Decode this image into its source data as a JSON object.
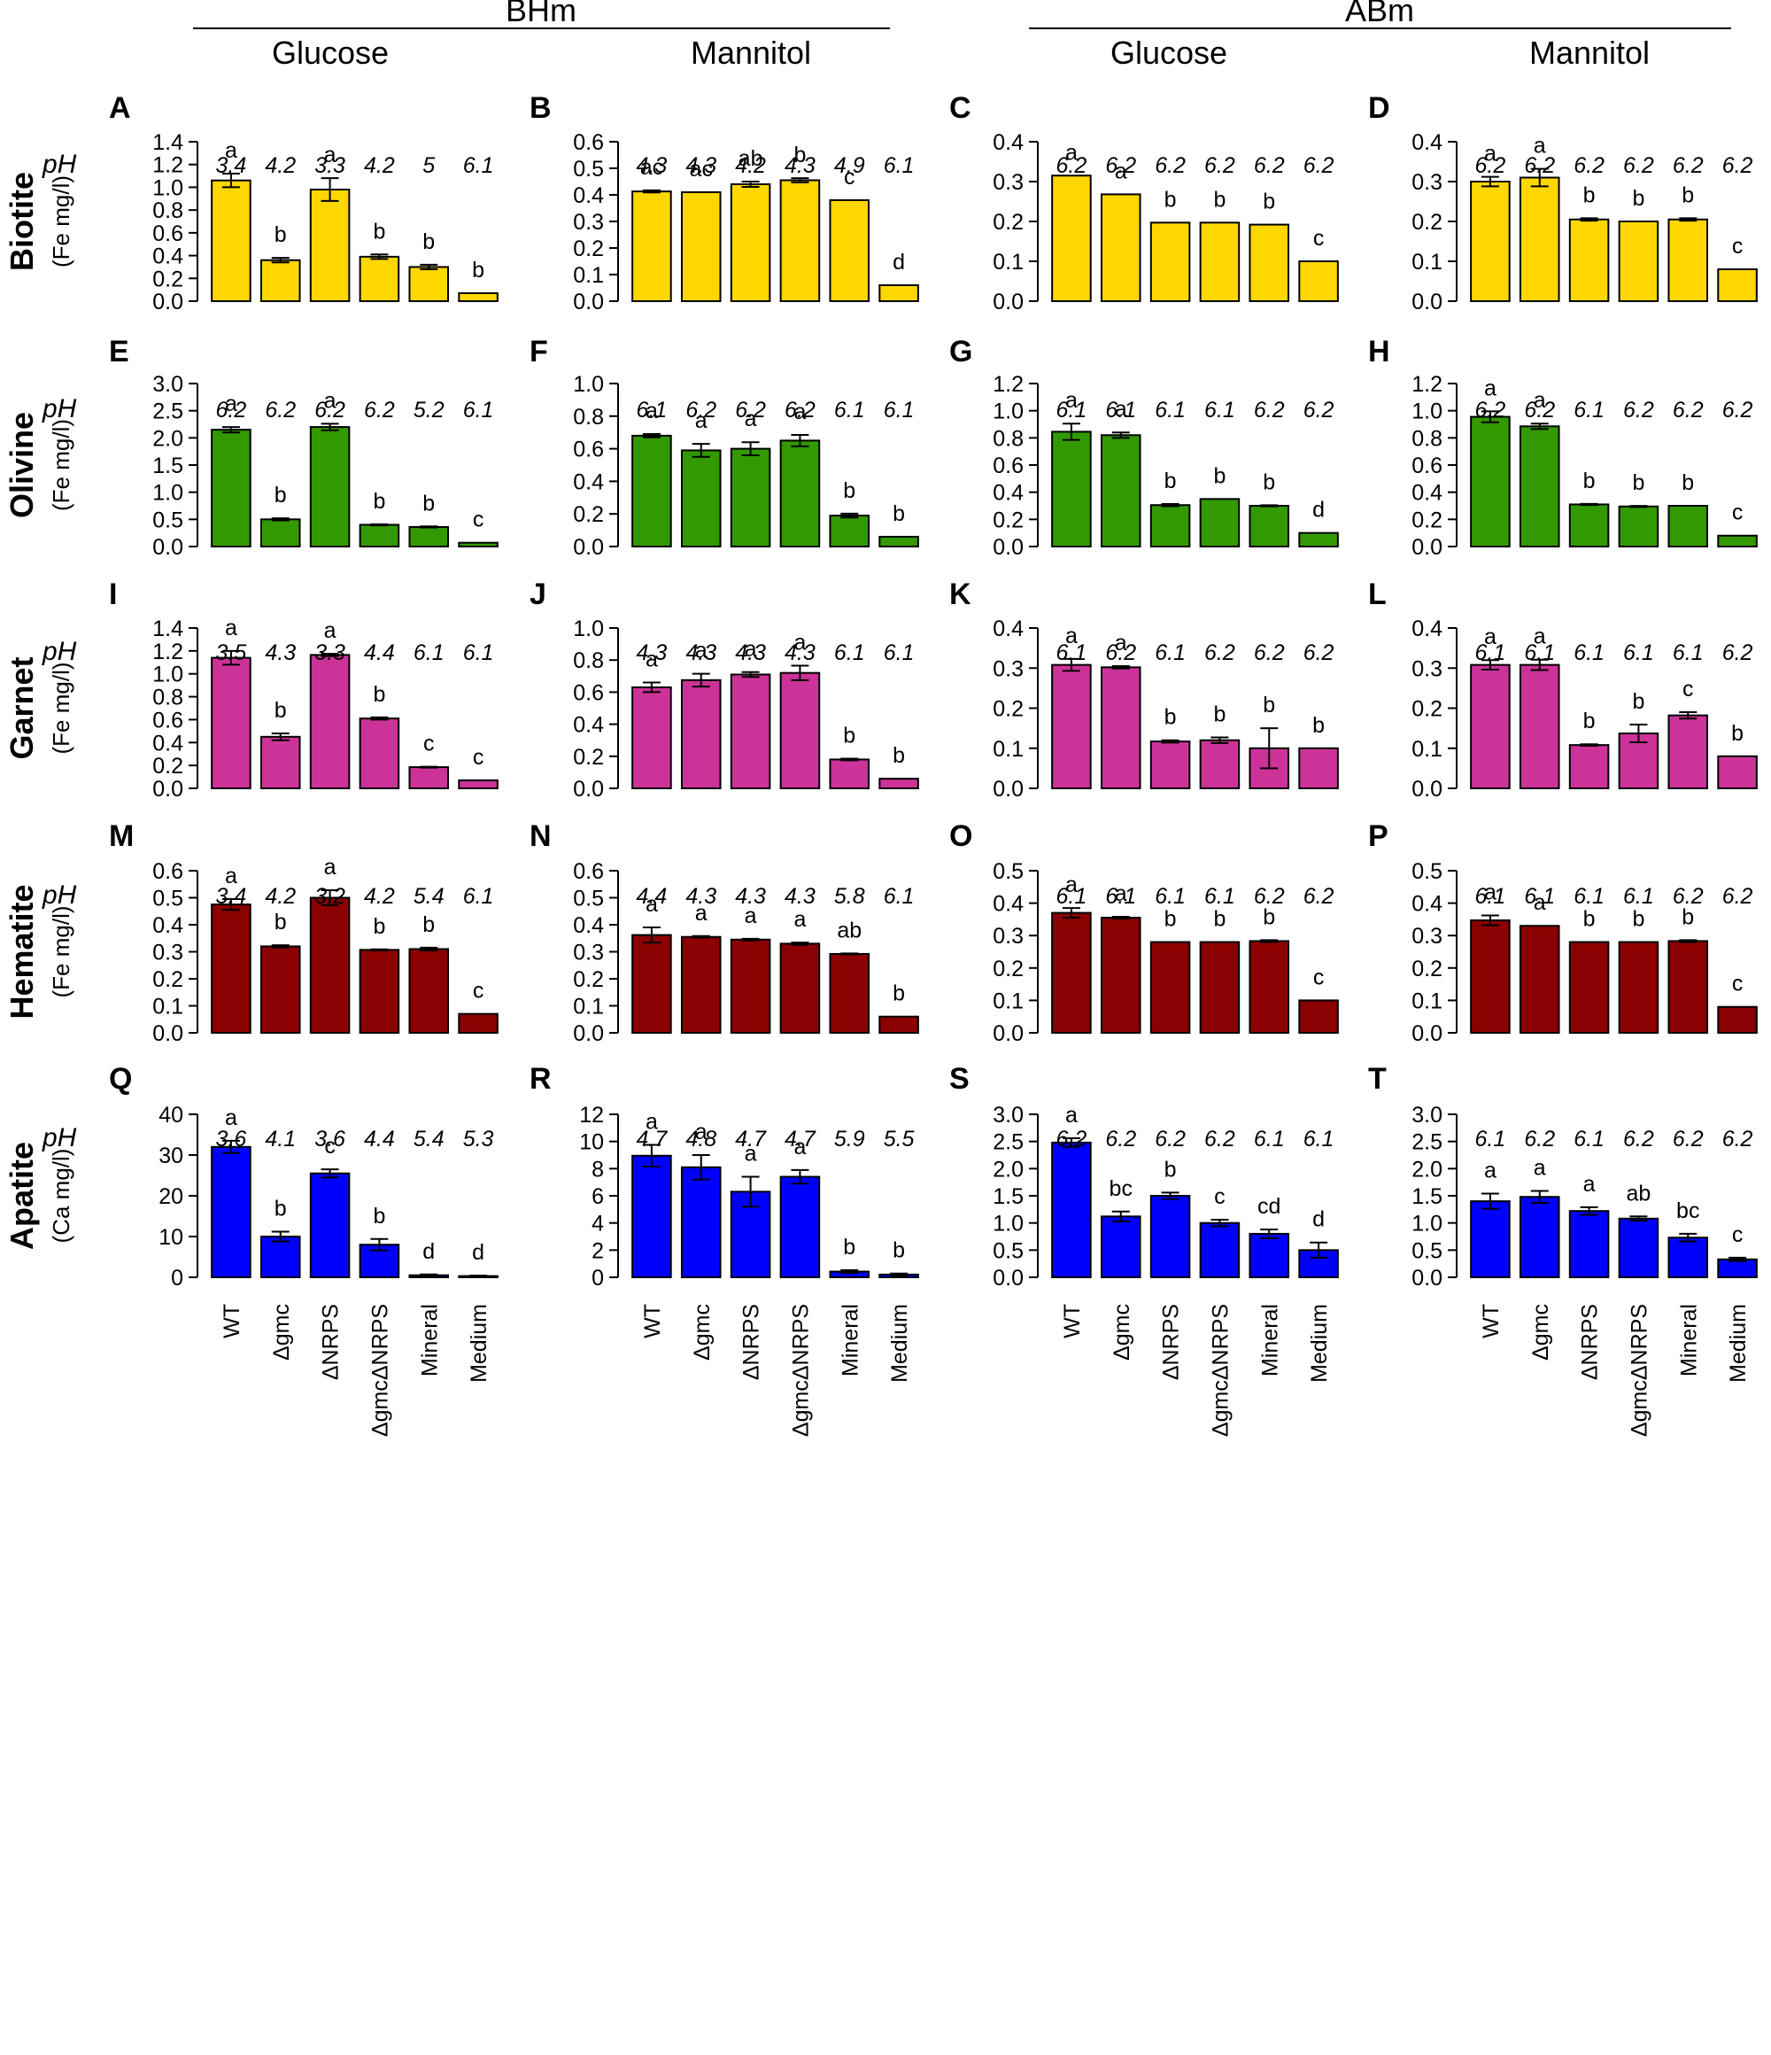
{
  "header": {
    "groups": [
      {
        "label": "BHm",
        "sugars": [
          "Glucose",
          "Mannitol"
        ]
      },
      {
        "label": "ABm",
        "sugars": [
          "Glucose",
          "Mannitol"
        ]
      }
    ]
  },
  "ph_label": "pH",
  "x_categories": [
    "WT",
    "Δgmc",
    "ΔNRPS",
    "ΔgmcΔNRPS",
    "Mineral",
    "Medium"
  ],
  "chart_data": [
    {
      "type": "bar",
      "panel": "A",
      "row_title": "Biotite",
      "ylabel": "(Fe mg/l)",
      "color": "#FFD700",
      "ylim": [
        0,
        1.4
      ],
      "yticks": [
        "0.0",
        "0.2",
        "0.4",
        "0.6",
        "0.8",
        "1.0",
        "1.2",
        "1.4"
      ],
      "ph": [
        "3.4",
        "4.2",
        "3.3",
        "4.2",
        "5",
        "6.1"
      ],
      "values": [
        1.06,
        0.36,
        0.98,
        0.39,
        0.3,
        0.07
      ],
      "errors": [
        0.06,
        0.02,
        0.1,
        0.02,
        0.02,
        0
      ],
      "letters": [
        "a",
        "b",
        "a",
        "b",
        "b",
        "b"
      ]
    },
    {
      "type": "bar",
      "panel": "B",
      "color": "#FFD700",
      "ylim": [
        0,
        0.6
      ],
      "yticks": [
        "0.0",
        "0.1",
        "0.2",
        "0.3",
        "0.4",
        "0.5",
        "0.6"
      ],
      "ph": [
        "4.3",
        "4.3",
        "4.2",
        "4.3",
        "4.9",
        "6.1"
      ],
      "values": [
        0.413,
        0.41,
        0.44,
        0.455,
        0.38,
        0.06
      ],
      "errors": [
        0.004,
        0,
        0.01,
        0.008,
        0,
        0
      ],
      "letters": [
        "ac",
        "ac",
        "ab",
        "b",
        "c",
        "d"
      ]
    },
    {
      "type": "bar",
      "panel": "C",
      "color": "#FFD700",
      "ylim": [
        0,
        0.4
      ],
      "yticks": [
        "0.0",
        "0.1",
        "0.2",
        "0.3",
        "0.4"
      ],
      "ph": [
        "6.2",
        "6.2",
        "6.2",
        "6.2",
        "6.2",
        "6.2"
      ],
      "values": [
        0.315,
        0.268,
        0.197,
        0.197,
        0.192,
        0.1
      ],
      "errors": [
        0,
        0,
        0,
        0,
        0,
        0
      ],
      "letters": [
        "a",
        "a",
        "b",
        "b",
        "b",
        "c"
      ]
    },
    {
      "type": "bar",
      "panel": "D",
      "color": "#FFD700",
      "ylim": [
        0,
        0.4
      ],
      "yticks": [
        "0.0",
        "0.1",
        "0.2",
        "0.3",
        "0.4"
      ],
      "ph": [
        "6.2",
        "6.2",
        "6.2",
        "6.2",
        "6.2",
        "6.2"
      ],
      "values": [
        0.3,
        0.31,
        0.205,
        0.2,
        0.205,
        0.08
      ],
      "errors": [
        0.012,
        0.022,
        0.003,
        0,
        0.003,
        0
      ],
      "letters": [
        "a",
        "a",
        "b",
        "b",
        "b",
        "c"
      ]
    },
    {
      "type": "bar",
      "panel": "E",
      "row_title": "Olivine",
      "ylabel": "(Fe mg/l)",
      "color": "#339900",
      "ylim": [
        0,
        3.0
      ],
      "yticks": [
        "0.0",
        "0.5",
        "1.0",
        "1.5",
        "2.0",
        "2.5",
        "3.0"
      ],
      "ph": [
        "6.2",
        "6.2",
        "6.2",
        "6.2",
        "5.2",
        "6.1"
      ],
      "values": [
        2.15,
        0.5,
        2.2,
        0.4,
        0.36,
        0.07
      ],
      "errors": [
        0.05,
        0.02,
        0.06,
        0.01,
        0.01,
        0
      ],
      "letters": [
        "a",
        "b",
        "a",
        "b",
        "b",
        "c"
      ]
    },
    {
      "type": "bar",
      "panel": "F",
      "color": "#339900",
      "ylim": [
        0,
        1.0
      ],
      "yticks": [
        "0.0",
        "0.2",
        "0.4",
        "0.6",
        "0.8",
        "1.0"
      ],
      "ph": [
        "6.1",
        "6.2",
        "6.2",
        "6.2",
        "6.1",
        "6.1"
      ],
      "values": [
        0.68,
        0.59,
        0.6,
        0.65,
        0.19,
        0.06
      ],
      "errors": [
        0.01,
        0.04,
        0.04,
        0.035,
        0.012,
        0
      ],
      "letters": [
        "a",
        "a",
        "a",
        "a",
        "b",
        "b"
      ]
    },
    {
      "type": "bar",
      "panel": "G",
      "color": "#339900",
      "ylim": [
        0,
        1.2
      ],
      "yticks": [
        "0.0",
        "0.2",
        "0.4",
        "0.6",
        "0.8",
        "1.0",
        "1.2"
      ],
      "ph": [
        "6.1",
        "6.1",
        "6.1",
        "6.1",
        "6.2",
        "6.2"
      ],
      "values": [
        0.845,
        0.82,
        0.305,
        0.35,
        0.3,
        0.1
      ],
      "errors": [
        0.06,
        0.02,
        0.008,
        0,
        0.004,
        0
      ],
      "letters": [
        "a",
        "a",
        "b",
        "b",
        "b",
        "d"
      ]
    },
    {
      "type": "bar",
      "panel": "H",
      "color": "#339900",
      "ylim": [
        0,
        1.2
      ],
      "yticks": [
        "0.0",
        "0.2",
        "0.4",
        "0.6",
        "0.8",
        "1.0",
        "1.2"
      ],
      "ph": [
        "6.2",
        "6.2",
        "6.1",
        "6.2",
        "6.2",
        "6.2"
      ],
      "values": [
        0.955,
        0.885,
        0.31,
        0.295,
        0.3,
        0.08
      ],
      "errors": [
        0.04,
        0.02,
        0.004,
        0.004,
        0,
        0
      ],
      "letters": [
        "a",
        "a",
        "b",
        "b",
        "b",
        "c"
      ]
    },
    {
      "type": "bar",
      "panel": "I",
      "row_title": "Garnet",
      "ylabel": "(Fe mg/l)",
      "color": "#CC3399",
      "ylim": [
        0,
        1.4
      ],
      "yticks": [
        "0.0",
        "0.2",
        "0.4",
        "0.6",
        "0.8",
        "1.0",
        "1.2",
        "1.4"
      ],
      "ph": [
        "3.5",
        "4.3",
        "3.3",
        "4.4",
        "6.1",
        "6.1"
      ],
      "values": [
        1.14,
        0.45,
        1.165,
        0.61,
        0.185,
        0.07
      ],
      "errors": [
        0.06,
        0.03,
        0.01,
        0.01,
        0.004,
        0
      ],
      "letters": [
        "a",
        "b",
        "a",
        "b",
        "c",
        "c"
      ]
    },
    {
      "type": "bar",
      "panel": "J",
      "color": "#CC3399",
      "ylim": [
        0,
        1.0
      ],
      "yticks": [
        "0.0",
        "0.2",
        "0.4",
        "0.6",
        "0.8",
        "1.0"
      ],
      "ph": [
        "4.3",
        "4.3",
        "4.3",
        "4.3",
        "6.1",
        "6.1"
      ],
      "values": [
        0.63,
        0.675,
        0.71,
        0.72,
        0.18,
        0.06
      ],
      "errors": [
        0.03,
        0.04,
        0.015,
        0.045,
        0.005,
        0
      ],
      "letters": [
        "a",
        "a",
        "a",
        "a",
        "b",
        "b"
      ]
    },
    {
      "type": "bar",
      "panel": "K",
      "color": "#CC3399",
      "ylim": [
        0,
        0.4
      ],
      "yticks": [
        "0.0",
        "0.1",
        "0.2",
        "0.3",
        "0.4"
      ],
      "ph": [
        "6.1",
        "6.2",
        "6.1",
        "6.2",
        "6.2",
        "6.2"
      ],
      "values": [
        0.308,
        0.302,
        0.117,
        0.12,
        0.1,
        0.1
      ],
      "errors": [
        0.015,
        0.003,
        0.003,
        0.007,
        0.05,
        0
      ],
      "letters": [
        "a",
        "a",
        "b",
        "b",
        "b",
        "b"
      ]
    },
    {
      "type": "bar",
      "panel": "L",
      "color": "#CC3399",
      "ylim": [
        0,
        0.4
      ],
      "yticks": [
        "0.0",
        "0.1",
        "0.2",
        "0.3",
        "0.4"
      ],
      "ph": [
        "6.1",
        "6.1",
        "6.1",
        "6.1",
        "6.1",
        "6.2"
      ],
      "values": [
        0.308,
        0.308,
        0.108,
        0.137,
        0.182,
        0.08
      ],
      "errors": [
        0.012,
        0.013,
        0.002,
        0.022,
        0.008,
        0
      ],
      "letters": [
        "a",
        "a",
        "b",
        "b",
        "c",
        "b"
      ]
    },
    {
      "type": "bar",
      "panel": "M",
      "row_title": "Hematite",
      "ylabel": "(Fe mg/l)",
      "color": "#8B0000",
      "ylim": [
        0,
        0.6
      ],
      "yticks": [
        "0.0",
        "0.1",
        "0.2",
        "0.3",
        "0.4",
        "0.5",
        "0.6"
      ],
      "ph": [
        "3.4",
        "4.2",
        "3.2",
        "4.2",
        "5.4",
        "6.1"
      ],
      "values": [
        0.475,
        0.32,
        0.5,
        0.307,
        0.31,
        0.07
      ],
      "errors": [
        0.02,
        0.004,
        0.028,
        0.002,
        0.005,
        0
      ],
      "letters": [
        "a",
        "b",
        "a",
        "b",
        "b",
        "c"
      ]
    },
    {
      "type": "bar",
      "panel": "N",
      "color": "#8B0000",
      "ylim": [
        0,
        0.6
      ],
      "yticks": [
        "0.0",
        "0.1",
        "0.2",
        "0.3",
        "0.4",
        "0.5",
        "0.6"
      ],
      "ph": [
        "4.4",
        "4.3",
        "4.3",
        "4.3",
        "5.8",
        "6.1"
      ],
      "values": [
        0.362,
        0.355,
        0.345,
        0.33,
        0.292,
        0.06
      ],
      "errors": [
        0.028,
        0.003,
        0.003,
        0.004,
        0.002,
        0
      ],
      "letters": [
        "a",
        "a",
        "a",
        "a",
        "ab",
        "b"
      ]
    },
    {
      "type": "bar",
      "panel": "O",
      "color": "#8B0000",
      "ylim": [
        0,
        0.5
      ],
      "yticks": [
        "0.0",
        "0.1",
        "0.2",
        "0.3",
        "0.4",
        "0.5"
      ],
      "ph": [
        "6.1",
        "6.1",
        "6.1",
        "6.1",
        "6.2",
        "6.2"
      ],
      "values": [
        0.37,
        0.355,
        0.28,
        0.28,
        0.283,
        0.1
      ],
      "errors": [
        0.015,
        0.003,
        0,
        0,
        0.003,
        0
      ],
      "letters": [
        "a",
        "a",
        "b",
        "b",
        "b",
        "c"
      ]
    },
    {
      "type": "bar",
      "panel": "P",
      "color": "#8B0000",
      "ylim": [
        0,
        0.5
      ],
      "yticks": [
        "0.0",
        "0.1",
        "0.2",
        "0.3",
        "0.4",
        "0.5"
      ],
      "ph": [
        "6.1",
        "6.1",
        "6.1",
        "6.1",
        "6.2",
        "6.2"
      ],
      "values": [
        0.347,
        0.33,
        0.28,
        0.28,
        0.283,
        0.08
      ],
      "errors": [
        0.015,
        0,
        0,
        0,
        0.003,
        0
      ],
      "letters": [
        "a",
        "a",
        "b",
        "b",
        "b",
        "c"
      ]
    },
    {
      "type": "bar",
      "panel": "Q",
      "row_title": "Apatite",
      "ylabel": "(Ca mg/l)",
      "color": "#0000FF",
      "ylim": [
        0,
        40
      ],
      "yticks": [
        "0",
        "10",
        "20",
        "30",
        "40"
      ],
      "ph": [
        "3.6",
        "4.1",
        "3.6",
        "4.4",
        "5.4",
        "5.3"
      ],
      "values": [
        32,
        10,
        25.5,
        8,
        0.5,
        0.3
      ],
      "errors": [
        1.5,
        1.2,
        1,
        1.4,
        0.2,
        0.1
      ],
      "letters": [
        "a",
        "b",
        "c",
        "b",
        "d",
        "d"
      ]
    },
    {
      "type": "bar",
      "panel": "R",
      "color": "#0000FF",
      "ylim": [
        0,
        12
      ],
      "yticks": [
        "0",
        "2",
        "4",
        "6",
        "8",
        "10",
        "12"
      ],
      "ph": [
        "4.7",
        "4.8",
        "4.7",
        "4.7",
        "5.9",
        "5.5"
      ],
      "values": [
        8.95,
        8.1,
        6.3,
        7.4,
        0.42,
        0.2
      ],
      "errors": [
        0.8,
        0.9,
        1.1,
        0.5,
        0.1,
        0.08
      ],
      "letters": [
        "a",
        "a",
        "a",
        "a",
        "b",
        "b"
      ]
    },
    {
      "type": "bar",
      "panel": "S",
      "color": "#0000FF",
      "ylim": [
        0,
        3.0
      ],
      "yticks": [
        "0.0",
        "0.5",
        "1.0",
        "1.5",
        "2.0",
        "2.5",
        "3.0"
      ],
      "ph": [
        "6.2",
        "6.2",
        "6.2",
        "6.2",
        "6.1",
        "6.1"
      ],
      "values": [
        2.48,
        1.12,
        1.5,
        1.0,
        0.8,
        0.5
      ],
      "errors": [
        0.08,
        0.09,
        0.06,
        0.06,
        0.08,
        0.14
      ],
      "letters": [
        "a",
        "bc",
        "b",
        "c",
        "cd",
        "d"
      ]
    },
    {
      "type": "bar",
      "panel": "T",
      "color": "#0000FF",
      "ylim": [
        0,
        3.0
      ],
      "yticks": [
        "0.0",
        "0.5",
        "1.0",
        "1.5",
        "2.0",
        "2.5",
        "3.0"
      ],
      "ph": [
        "6.1",
        "6.2",
        "6.1",
        "6.2",
        "6.2",
        "6.2"
      ],
      "values": [
        1.4,
        1.48,
        1.22,
        1.08,
        0.73,
        0.33
      ],
      "errors": [
        0.14,
        0.11,
        0.07,
        0.04,
        0.07,
        0.03
      ],
      "letters": [
        "a",
        "a",
        "a",
        "ab",
        "bc",
        "c"
      ]
    }
  ]
}
